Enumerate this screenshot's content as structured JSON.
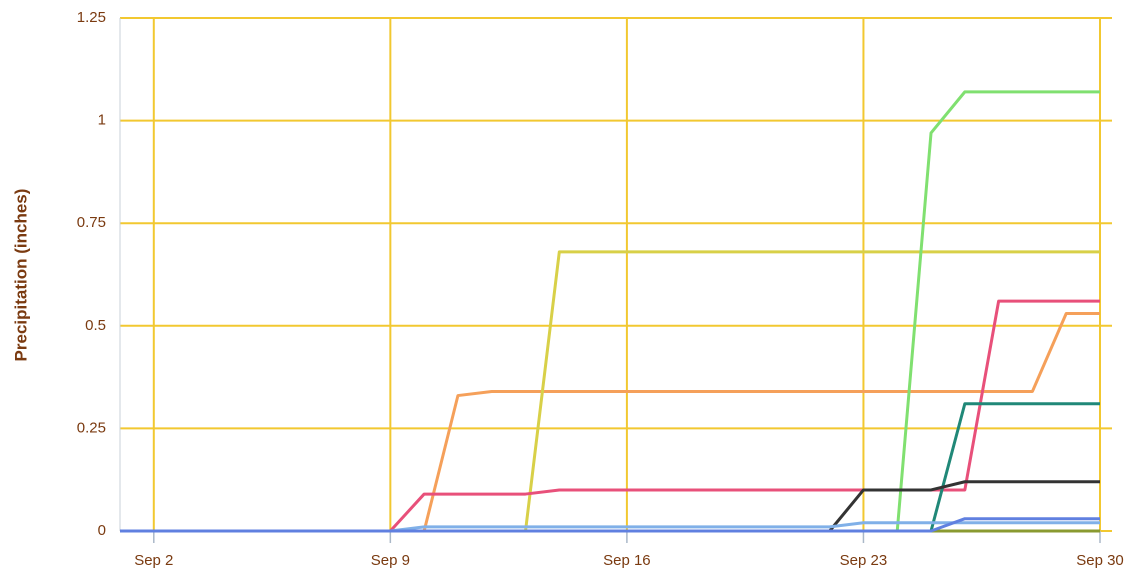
{
  "chart_data": {
    "type": "line",
    "y_label": "Precipitation (inches)",
    "x": [
      1,
      2,
      3,
      4,
      5,
      6,
      7,
      8,
      9,
      10,
      11,
      12,
      13,
      14,
      15,
      16,
      17,
      18,
      19,
      20,
      21,
      22,
      23,
      24,
      25,
      26,
      27,
      28,
      29,
      30
    ],
    "xlim": [
      1,
      30
    ],
    "xticks": [
      {
        "value": 2,
        "label": "Sep 2"
      },
      {
        "value": 9,
        "label": "Sep 9"
      },
      {
        "value": 16,
        "label": "Sep 16"
      },
      {
        "value": 23,
        "label": "Sep 23"
      },
      {
        "value": 30,
        "label": "Sep 30"
      }
    ],
    "ylim": [
      0,
      1.25
    ],
    "yticks": [
      0,
      0.25,
      0.5,
      0.75,
      1,
      1.25
    ],
    "grid": true,
    "grid_color": "#f2c830",
    "series": [
      {
        "color": "#8a9a30",
        "values": [
          0,
          0,
          0,
          0,
          0,
          0,
          0,
          0,
          0,
          0,
          0,
          0,
          0,
          0,
          0,
          0,
          0,
          0,
          0,
          0,
          0,
          0,
          0,
          0,
          0,
          0,
          0,
          0,
          0,
          0
        ]
      },
      {
        "color": "#f5a05a",
        "values": [
          0,
          0,
          0,
          0,
          0,
          0,
          0,
          0,
          0,
          0,
          0.33,
          0.34,
          0.34,
          0.34,
          0.34,
          0.34,
          0.34,
          0.34,
          0.34,
          0.34,
          0.34,
          0.34,
          0.34,
          0.34,
          0.34,
          0.34,
          0.34,
          0.34,
          0.53,
          0.53
        ]
      },
      {
        "color": "#d8d048",
        "values": [
          0,
          0,
          0,
          0,
          0,
          0,
          0,
          0,
          0,
          0,
          0,
          0,
          0,
          0.68,
          0.68,
          0.68,
          0.68,
          0.68,
          0.68,
          0.68,
          0.68,
          0.68,
          0.68,
          0.68,
          0.68,
          0.68,
          0.68,
          0.68,
          0.68,
          0.68
        ]
      },
      {
        "color": "#e8507a",
        "values": [
          0,
          0,
          0,
          0,
          0,
          0,
          0,
          0,
          0,
          0.09,
          0.09,
          0.09,
          0.09,
          0.1,
          0.1,
          0.1,
          0.1,
          0.1,
          0.1,
          0.1,
          0.1,
          0.1,
          0.1,
          0.1,
          0.1,
          0.1,
          0.56,
          0.56,
          0.56,
          0.56
        ]
      },
      {
        "color": "#80e070",
        "values": [
          0,
          0,
          0,
          0,
          0,
          0,
          0,
          0,
          0,
          0,
          0,
          0,
          0,
          0,
          0,
          0,
          0,
          0,
          0,
          0,
          0,
          0,
          0,
          0,
          0.97,
          1.07,
          1.07,
          1.07,
          1.07,
          1.07
        ]
      },
      {
        "color": "#208878",
        "values": [
          0,
          0,
          0,
          0,
          0,
          0,
          0,
          0,
          0,
          0,
          0,
          0,
          0,
          0,
          0,
          0,
          0,
          0,
          0,
          0,
          0,
          0,
          0,
          0,
          0,
          0.31,
          0.31,
          0.31,
          0.31,
          0.31
        ]
      },
      {
        "color": "#333333",
        "values": [
          0,
          0,
          0,
          0,
          0,
          0,
          0,
          0,
          0,
          0,
          0,
          0,
          0,
          0,
          0,
          0,
          0,
          0,
          0,
          0,
          0,
          0,
          0.1,
          0.1,
          0.1,
          0.12,
          0.12,
          0.12,
          0.12,
          0.12
        ]
      },
      {
        "color": "#80b0e8",
        "values": [
          0,
          0,
          0,
          0,
          0,
          0,
          0,
          0,
          0,
          0.01,
          0.01,
          0.01,
          0.01,
          0.01,
          0.01,
          0.01,
          0.01,
          0.01,
          0.01,
          0.01,
          0.01,
          0.01,
          0.02,
          0.02,
          0.02,
          0.02,
          0.02,
          0.02,
          0.02,
          0.02
        ]
      },
      {
        "color": "#6080e0",
        "values": [
          0,
          0,
          0,
          0,
          0,
          0,
          0,
          0,
          0,
          0,
          0,
          0,
          0,
          0,
          0,
          0,
          0,
          0,
          0,
          0,
          0,
          0,
          0,
          0,
          0,
          0.03,
          0.03,
          0.03,
          0.03,
          0.03
        ]
      }
    ]
  }
}
